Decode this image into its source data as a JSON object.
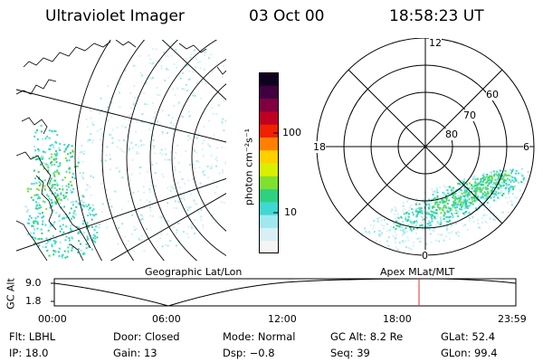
{
  "header": {
    "instrument": "Ultraviolet Imager",
    "date": "03 Oct 00",
    "time": "18:58:23 UT"
  },
  "colorbar": {
    "unit_label": "photon cm⁻²s⁻¹",
    "ticks": [
      "100",
      "10"
    ],
    "scale": "log",
    "colors": [
      "#f5f5f5",
      "#d8f0f5",
      "#a0e8f0",
      "#40d8d0",
      "#30d080",
      "#80e030",
      "#d8f000",
      "#ffd000",
      "#ff8000",
      "#f02000",
      "#c00020",
      "#800040",
      "#400040",
      "#100020"
    ]
  },
  "left_map": {
    "label": "Geographic Lat/Lon"
  },
  "right_map": {
    "label": "Apex  MLat/MLT",
    "mlt_labels": {
      "top": "12",
      "left": "18",
      "right": "6",
      "bottom": "0"
    },
    "lat_labels": [
      "60",
      "70",
      "80"
    ]
  },
  "altitude_plot": {
    "ylabel": "GC Alt",
    "yticks": [
      "9.0",
      "1.8"
    ],
    "xticks": [
      "00:00",
      "06:00",
      "12:00",
      "18:00",
      "23:59"
    ],
    "marker_color": "#e03030"
  },
  "info": {
    "flt": "Flt: LBHL",
    "ip": "IP: 18.0",
    "door": "Door: Closed",
    "gain": "Gain: 13",
    "mode": "Mode: Normal",
    "dsp": "Dsp:  −0.8",
    "gcalt": "GC Alt: 8.2 Re",
    "seq": "Seq: 39",
    "glat": "GLat:  52.4",
    "glon": "GLon:  99.4"
  }
}
